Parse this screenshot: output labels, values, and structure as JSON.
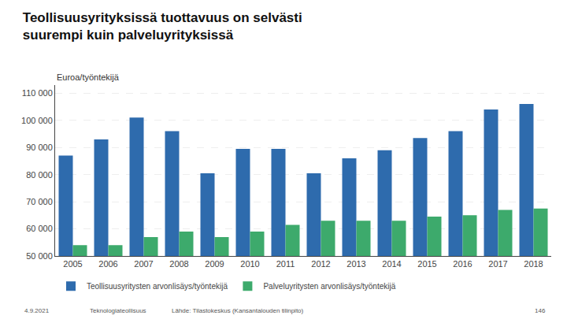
{
  "chart_data": {
    "type": "bar",
    "title": "Teollisuusyrityksissä tuottavuus on selvästi\nsuurempi kuin palveluyrityksissä",
    "ylabel": "Euroa/työntekijä",
    "categories": [
      "2005",
      "2006",
      "2007",
      "2008",
      "2009",
      "2010",
      "2011",
      "2012",
      "2013",
      "2014",
      "2015",
      "2016",
      "2017",
      "2018"
    ],
    "series": [
      {
        "name": "Teollisuusyritysten arvonlisäys/työntekijä",
        "color": "#2E6BAD",
        "values": [
          87000,
          93000,
          101000,
          96000,
          80500,
          89500,
          89500,
          80500,
          86000,
          89000,
          93500,
          96000,
          104000,
          106000
        ]
      },
      {
        "name": "Palveluyritysten arvonlisäys/työntekijä",
        "color": "#3DAA6C",
        "values": [
          54000,
          54000,
          57000,
          59000,
          57000,
          59000,
          61500,
          63000,
          63000,
          63000,
          64500,
          65000,
          67000,
          67500
        ]
      }
    ],
    "ylim": [
      50000,
      113000
    ],
    "yticks": [
      {
        "value": 50000,
        "label": "50 000"
      },
      {
        "value": 60000,
        "label": "60 000"
      },
      {
        "value": 70000,
        "label": "70 000"
      },
      {
        "value": 80000,
        "label": "80 000"
      },
      {
        "value": 90000,
        "label": "90 000"
      },
      {
        "value": 100000,
        "label": "100 000"
      },
      {
        "value": 110000,
        "label": "110 000"
      }
    ],
    "grid": true,
    "legend": "bottom",
    "annotations": [
      "4.9.2021",
      "Teknologiateollisuus",
      "Lähde: Tilastokeskus (Kansantalouden tilinpito)",
      "146"
    ]
  }
}
